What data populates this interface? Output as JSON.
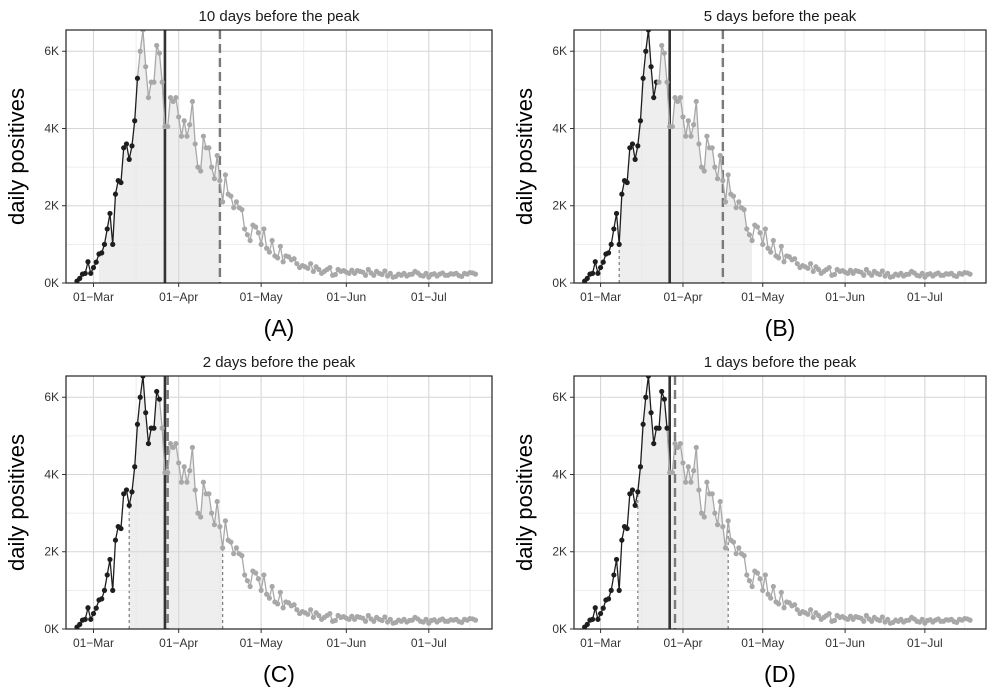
{
  "figure": {
    "panels": [
      {
        "id": "A",
        "title": "10 days before the peak",
        "caption": "(A)"
      },
      {
        "id": "B",
        "title": "5 days before the peak",
        "caption": "(B)"
      },
      {
        "id": "C",
        "title": "2 days before the peak",
        "caption": "(C)"
      },
      {
        "id": "D",
        "title": "1 days before the peak",
        "caption": "(D)"
      }
    ]
  },
  "colors": {
    "observed": "#1e1e1e",
    "unobserved": "#a8a8a8",
    "shade": "#eeeeee",
    "grid": "#d6d6d6",
    "cutoff_line": "#333333",
    "dashed_line": "#7a7a7a"
  },
  "chart_data": [
    {
      "type": "line",
      "title": "10 days before the peak",
      "caption": "(A)",
      "ylabel": "daily positives",
      "xlabel": "",
      "x_ticks": [
        {
          "date": "2020-03-01",
          "label": "01−Mar"
        },
        {
          "date": "2020-04-01",
          "label": "01−Apr"
        },
        {
          "date": "2020-05-01",
          "label": "01−May"
        },
        {
          "date": "2020-06-01",
          "label": "01−Jun"
        },
        {
          "date": "2020-07-01",
          "label": "01−Jul"
        }
      ],
      "y_ticks": [
        {
          "value": 0,
          "label": "0K"
        },
        {
          "value": 2000,
          "label": "2K"
        },
        {
          "value": 4000,
          "label": "4K"
        },
        {
          "value": 6000,
          "label": "6K"
        }
      ],
      "xlim": [
        "2020-02-20",
        "2020-07-24"
      ],
      "ylim": [
        0,
        6550
      ],
      "grid": true,
      "observed_until": "2020-03-17",
      "cutoff_date": "2020-03-27",
      "dashed_date": "2020-04-16",
      "shade_start": "2020-03-03",
      "shade_end": "2020-04-16",
      "shade_left_dashed": false,
      "shade_right_dashed": false
    },
    {
      "type": "line",
      "title": "5 days before the peak",
      "caption": "(B)",
      "ylabel": "daily positives",
      "xlabel": "",
      "x_ticks": [
        {
          "date": "2020-03-01",
          "label": "01−Mar"
        },
        {
          "date": "2020-04-01",
          "label": "01−Apr"
        },
        {
          "date": "2020-05-01",
          "label": "01−May"
        },
        {
          "date": "2020-06-01",
          "label": "01−Jun"
        },
        {
          "date": "2020-07-01",
          "label": "01−Jul"
        }
      ],
      "y_ticks": [
        {
          "value": 0,
          "label": "0K"
        },
        {
          "value": 2000,
          "label": "2K"
        },
        {
          "value": 4000,
          "label": "4K"
        },
        {
          "value": 6000,
          "label": "6K"
        }
      ],
      "xlim": [
        "2020-02-20",
        "2020-07-24"
      ],
      "ylim": [
        0,
        6550
      ],
      "grid": true,
      "observed_until": "2020-03-22",
      "cutoff_date": "2020-03-27",
      "dashed_date": "2020-04-16",
      "shade_start": "2020-03-08",
      "shade_end": "2020-04-27",
      "shade_left_dashed": true,
      "shade_right_dashed": false
    },
    {
      "type": "line",
      "title": "2 days before the peak",
      "caption": "(C)",
      "ylabel": "daily positives",
      "xlabel": "",
      "x_ticks": [
        {
          "date": "2020-03-01",
          "label": "01−Mar"
        },
        {
          "date": "2020-04-01",
          "label": "01−Apr"
        },
        {
          "date": "2020-05-01",
          "label": "01−May"
        },
        {
          "date": "2020-06-01",
          "label": "01−Jun"
        },
        {
          "date": "2020-07-01",
          "label": "01−Jul"
        }
      ],
      "y_ticks": [
        {
          "value": 0,
          "label": "0K"
        },
        {
          "value": 2000,
          "label": "2K"
        },
        {
          "value": 4000,
          "label": "4K"
        },
        {
          "value": 6000,
          "label": "6K"
        }
      ],
      "xlim": [
        "2020-02-20",
        "2020-07-24"
      ],
      "ylim": [
        0,
        6550
      ],
      "grid": true,
      "observed_until": "2020-03-25",
      "cutoff_date": "2020-03-27",
      "dashed_date": "2020-03-28",
      "shade_start": "2020-03-14",
      "shade_end": "2020-04-17",
      "shade_left_dashed": true,
      "shade_right_dashed": true
    },
    {
      "type": "line",
      "title": "1 days before the peak",
      "caption": "(D)",
      "ylabel": "daily positives",
      "xlabel": "",
      "x_ticks": [
        {
          "date": "2020-03-01",
          "label": "01−Mar"
        },
        {
          "date": "2020-04-01",
          "label": "01−Apr"
        },
        {
          "date": "2020-05-01",
          "label": "01−May"
        },
        {
          "date": "2020-06-01",
          "label": "01−Jun"
        },
        {
          "date": "2020-07-01",
          "label": "01−Jul"
        }
      ],
      "y_ticks": [
        {
          "value": 0,
          "label": "0K"
        },
        {
          "value": 2000,
          "label": "2K"
        },
        {
          "value": 4000,
          "label": "4K"
        },
        {
          "value": 6000,
          "label": "6K"
        }
      ],
      "xlim": [
        "2020-02-20",
        "2020-07-24"
      ],
      "ylim": [
        0,
        6550
      ],
      "grid": true,
      "observed_until": "2020-03-26",
      "cutoff_date": "2020-03-27",
      "dashed_date": "2020-03-29",
      "shade_start": "2020-03-15",
      "shade_end": "2020-04-18",
      "shade_left_dashed": true,
      "shade_right_dashed": true
    }
  ],
  "series": {
    "name": "",
    "start_date": "2020-02-24",
    "values": [
      50,
      120,
      230,
      250,
      550,
      250,
      400,
      540,
      750,
      780,
      1000,
      1400,
      1800,
      1000,
      2300,
      2650,
      2600,
      3500,
      3600,
      3200,
      3550,
      4200,
      5300,
      6000,
      6550,
      5600,
      4800,
      5200,
      5200,
      6150,
      5950,
      5200,
      4050,
      4050,
      4800,
      4700,
      4800,
      4300,
      3800,
      4200,
      3800,
      4100,
      4700,
      3600,
      3000,
      2900,
      3800,
      3500,
      3500,
      3000,
      2700,
      3300,
      2650,
      2100,
      2800,
      2300,
      2250,
      1950,
      2100,
      1950,
      1900,
      1400,
      1250,
      1100,
      1500,
      1450,
      1300,
      1000,
      1400,
      900,
      800,
      1100,
      700,
      650,
      950,
      550,
      700,
      680,
      600,
      630,
      500,
      400,
      450,
      420,
      380,
      500,
      300,
      420,
      350,
      250,
      300,
      350,
      400,
      200,
      220,
      350,
      300,
      320,
      280,
      250,
      330,
      250,
      320,
      300,
      280,
      200,
      350,
      260,
      200,
      300,
      250,
      220,
      310,
      180,
      250,
      150,
      170,
      230,
      200,
      250,
      180,
      220,
      230,
      300,
      260,
      200,
      180,
      250,
      150,
      220,
      240,
      180,
      230,
      260,
      200,
      200,
      240,
      230,
      250,
      190,
      170,
      250,
      230,
      270,
      260,
      230
    ]
  }
}
